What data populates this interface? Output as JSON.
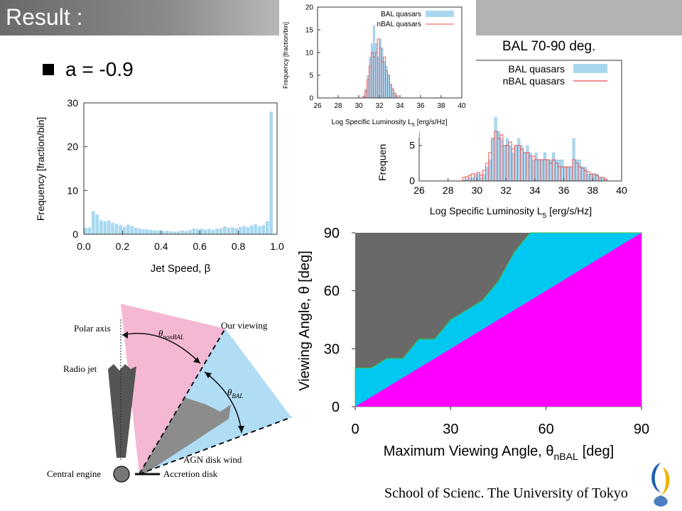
{
  "slide": {
    "title": "Result :",
    "bullet": "a = -0.9",
    "bal_range_label": "BAL 70-90 deg.",
    "footer": "School of Scienc. The University of Tokyo"
  },
  "colors": {
    "bal_fill": "#a8d8f0",
    "nbal_line": "#e85050",
    "region_gray": "#696969",
    "region_cyan": "#00c8f0",
    "region_magenta": "#ff00ff",
    "pink_cone": "#f4b8d4",
    "blue_cone": "#b0dcf4"
  },
  "chart_data": [
    {
      "id": "jet-speed-histogram",
      "type": "bar",
      "xlabel": "Jet Speed, β",
      "ylabel": "Frequency [fraction/bin]",
      "xlim": [
        0.0,
        1.0
      ],
      "ylim": [
        0,
        30
      ],
      "xticks": [
        "0.0",
        "0.2",
        "0.4",
        "0.6",
        "0.8",
        "1.0"
      ],
      "yticks": [
        "0",
        "10",
        "20",
        "30"
      ],
      "bin_width": 0.02,
      "values": [
        1.5,
        1.6,
        5.3,
        4.5,
        3.2,
        3.0,
        3.1,
        2.6,
        2.4,
        2.1,
        1.7,
        2.2,
        1.9,
        1.5,
        1.3,
        1.2,
        1.1,
        1.0,
        0.9,
        0.9,
        0.8,
        0.8,
        0.7,
        0.6,
        0.7,
        0.9,
        0.8,
        1.0,
        1.3,
        1.2,
        1.3,
        1.1,
        1.2,
        1.0,
        1.3,
        1.4,
        1.8,
        1.5,
        1.6,
        1.4,
        1.7,
        1.9,
        1.7,
        2.0,
        2.3,
        1.8,
        2.1,
        3.0,
        28.0,
        0.0
      ],
      "hist_color": "#a8d8f0"
    },
    {
      "id": "luminosity-histogram-small",
      "type": "bar",
      "xlabel": "Log Specific Luminosity L",
      "xlabel_sub": "5",
      "xlabel_unit": "[erg/s/Hz]",
      "ylabel": "Frequency [fraction/bin]",
      "xlim": [
        26,
        40
      ],
      "ylim": [
        0,
        20
      ],
      "xticks": [
        "26",
        "28",
        "30",
        "32",
        "34",
        "36",
        "38",
        "40"
      ],
      "yticks": [
        "0",
        "5",
        "10",
        "15",
        "20"
      ],
      "legend": [
        "BAL quasars",
        "nBAL quasars"
      ],
      "bin_edges_start": 30.4,
      "bin_width": 0.2,
      "bal_values": [
        0.5,
        2,
        5,
        9,
        12,
        16,
        12,
        9,
        13,
        11,
        8,
        7,
        5,
        3,
        2,
        1,
        0.5
      ],
      "nbal_values": [
        0.3,
        1.5,
        4,
        7,
        10,
        9,
        10,
        13,
        11,
        8,
        9,
        6,
        5,
        3,
        2,
        1,
        0.5
      ]
    },
    {
      "id": "luminosity-histogram-large",
      "type": "bar",
      "xlabel": "Log Specific Luminosity L",
      "xlabel_sub": "5",
      "xlabel_unit": "[erg/s/Hz]",
      "ylabel": "Frequen",
      "xlim": [
        26,
        40
      ],
      "ylim": [
        0,
        17
      ],
      "xticks": [
        "26",
        "28",
        "30",
        "32",
        "34",
        "36",
        "38",
        "40"
      ],
      "yticks": [
        "0",
        "5"
      ],
      "legend": [
        "BAL quasars",
        "nBAL quasars"
      ],
      "bin_edges_start": 29.0,
      "bin_width": 0.2,
      "bal_values": [
        0.2,
        0.3,
        0.5,
        0.5,
        0.8,
        1,
        0.5,
        1,
        2,
        3,
        6,
        9,
        7,
        6,
        5,
        6,
        5,
        4,
        5,
        6,
        5,
        4,
        5,
        4,
        3,
        4,
        3,
        3,
        4,
        3,
        3,
        4,
        3,
        3,
        3,
        2,
        2,
        2,
        6,
        3,
        3,
        2,
        2,
        1,
        1,
        1,
        1,
        0.5,
        0.5,
        0.3
      ],
      "nbal_values": [
        0.5,
        0.6,
        0.8,
        1,
        1,
        1.2,
        0.8,
        1.5,
        2.5,
        4,
        6,
        7,
        6,
        6.5,
        5,
        5,
        5.5,
        4.5,
        5,
        5,
        4.5,
        4,
        4,
        3.5,
        3.5,
        3,
        3,
        3,
        3,
        3,
        2.5,
        3,
        2.5,
        2,
        2,
        2,
        2,
        2,
        3,
        2.5,
        2,
        1.8,
        1.5,
        1.3,
        1,
        1,
        0.8,
        0.5,
        0.5,
        0.3
      ]
    },
    {
      "id": "viewing-angle-regions",
      "type": "area",
      "xlabel": "Maximum Viewing Angle, θ",
      "xlabel_sub": "nBAL",
      "xlabel_unit": "[deg]",
      "ylabel": "Viewing Angle, θ [deg]",
      "xlim": [
        0,
        90
      ],
      "ylim": [
        0,
        90
      ],
      "xticks": [
        "0",
        "30",
        "60",
        "90"
      ],
      "yticks": [
        "0",
        "30",
        "60",
        "90"
      ],
      "boundary_upper": {
        "x": [
          0,
          5,
          10,
          15,
          20,
          25,
          30,
          35,
          40,
          45,
          50,
          55,
          90
        ],
        "y": [
          20,
          20,
          25,
          25,
          35,
          35,
          45,
          50,
          55,
          65,
          80,
          90,
          90
        ]
      },
      "boundary_lower": {
        "x": [
          0,
          90
        ],
        "y": [
          0,
          90
        ]
      }
    }
  ],
  "diagram": {
    "polar_axis": "Polar axis",
    "our_viewing": "Our viewing",
    "radio_jet": "Radio jet",
    "theta_nonbal": "θ",
    "theta_nonbal_sub": "nonBAL",
    "theta_bal": "θ",
    "theta_bal_sub": "BAL",
    "agn_disk_wind": "AGN disk wind",
    "central_engine": "Central engine",
    "accretion_disk": "Accretion disk"
  }
}
